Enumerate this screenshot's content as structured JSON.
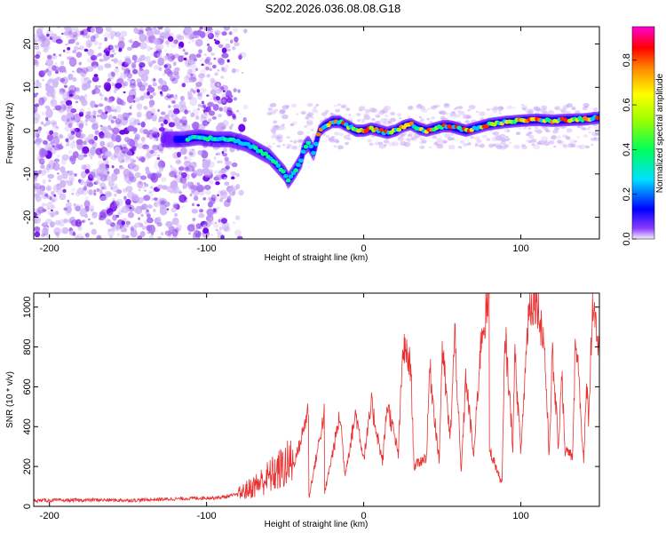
{
  "title": "S202.2026.036.08.08.G18",
  "chart_data": [
    {
      "type": "heatmap",
      "name": "spectrogram",
      "xlabel": "Height of straight line (km)",
      "ylabel": "Frequency (Hz)",
      "xlim": [
        -210,
        150
      ],
      "ylim": [
        -25,
        24
      ],
      "xticks": [
        -200,
        -100,
        0,
        100
      ],
      "yticks": [
        -20,
        -10,
        0,
        10,
        20
      ],
      "colorbar": {
        "label": "Normalized spectral amplitude",
        "range": [
          0,
          0.95
        ],
        "ticks": [
          0.0,
          0.2,
          0.4,
          0.6,
          0.8
        ]
      },
      "ridge": [
        [
          -125,
          -2
        ],
        [
          -115,
          -2
        ],
        [
          -105,
          -1.5
        ],
        [
          -95,
          -2
        ],
        [
          -85,
          -2
        ],
        [
          -75,
          -3
        ],
        [
          -70,
          -4
        ],
        [
          -65,
          -5
        ],
        [
          -60,
          -6
        ],
        [
          -55,
          -8
        ],
        [
          -50,
          -10
        ],
        [
          -48,
          -11.5
        ],
        [
          -45,
          -10
        ],
        [
          -40,
          -7
        ],
        [
          -38,
          -4
        ],
        [
          -35,
          -3
        ],
        [
          -32,
          -5
        ],
        [
          -28,
          0
        ],
        [
          -25,
          1
        ],
        [
          -20,
          2
        ],
        [
          -15,
          2
        ],
        [
          -10,
          1
        ],
        [
          -5,
          0
        ],
        [
          0,
          0
        ],
        [
          5,
          0.5
        ],
        [
          10,
          0
        ],
        [
          15,
          -0.5
        ],
        [
          20,
          0
        ],
        [
          25,
          1
        ],
        [
          30,
          1.5
        ],
        [
          35,
          0.5
        ],
        [
          40,
          0
        ],
        [
          45,
          0.5
        ],
        [
          50,
          1
        ],
        [
          55,
          1
        ],
        [
          60,
          0.5
        ],
        [
          65,
          0
        ],
        [
          70,
          0.5
        ],
        [
          75,
          1
        ],
        [
          80,
          1.5
        ],
        [
          90,
          2
        ],
        [
          100,
          2.3
        ],
        [
          110,
          2.5
        ],
        [
          120,
          2.3
        ],
        [
          130,
          2.5
        ],
        [
          140,
          2.6
        ],
        [
          150,
          3
        ]
      ]
    },
    {
      "type": "line",
      "name": "snr",
      "xlabel": "Height of straight line (km)",
      "ylabel": "SNR (10 * v/v)",
      "xlim": [
        -210,
        150
      ],
      "ylim": [
        0,
        1070
      ],
      "xticks": [
        -200,
        -100,
        0,
        100
      ],
      "yticks": [
        0,
        200,
        400,
        600,
        800,
        1000
      ],
      "color": "#e83030",
      "envelope": [
        [
          -210,
          30
        ],
        [
          -190,
          30
        ],
        [
          -170,
          32
        ],
        [
          -150,
          30
        ],
        [
          -130,
          35
        ],
        [
          -110,
          40
        ],
        [
          -90,
          45
        ],
        [
          -80,
          60
        ],
        [
          -70,
          100
        ],
        [
          -60,
          150
        ],
        [
          -50,
          200
        ],
        [
          -40,
          260
        ],
        [
          -30,
          310
        ],
        [
          -20,
          330
        ],
        [
          -10,
          380
        ],
        [
          0,
          400
        ],
        [
          10,
          420
        ],
        [
          20,
          480
        ],
        [
          30,
          600
        ],
        [
          40,
          650
        ],
        [
          50,
          600
        ],
        [
          60,
          700
        ],
        [
          70,
          700
        ],
        [
          80,
          760
        ],
        [
          90,
          620
        ],
        [
          100,
          730
        ],
        [
          110,
          760
        ],
        [
          120,
          620
        ],
        [
          130,
          660
        ],
        [
          140,
          640
        ],
        [
          150,
          740
        ]
      ],
      "peaks": [
        [
          -45,
          200
        ],
        [
          -40,
          330
        ],
        [
          -35,
          500
        ],
        [
          -25,
          470
        ],
        [
          -15,
          460
        ],
        [
          -5,
          470
        ],
        [
          5,
          510
        ],
        [
          15,
          520
        ],
        [
          25,
          800
        ],
        [
          30,
          700
        ],
        [
          42,
          700
        ],
        [
          50,
          800
        ],
        [
          58,
          870
        ],
        [
          65,
          650
        ],
        [
          75,
          870
        ],
        [
          80,
          1040
        ],
        [
          90,
          870
        ],
        [
          96,
          780
        ],
        [
          105,
          1000
        ],
        [
          110,
          1050
        ],
        [
          115,
          810
        ],
        [
          120,
          760
        ],
        [
          126,
          700
        ],
        [
          135,
          900
        ],
        [
          142,
          620
        ],
        [
          146,
          1070
        ],
        [
          150,
          740
        ]
      ],
      "troughs": [
        [
          -35,
          40
        ],
        [
          -25,
          60
        ],
        [
          -12,
          160
        ],
        [
          0,
          240
        ],
        [
          12,
          220
        ],
        [
          22,
          260
        ],
        [
          32,
          200
        ],
        [
          40,
          250
        ],
        [
          48,
          220
        ],
        [
          55,
          330
        ],
        [
          62,
          160
        ],
        [
          70,
          250
        ],
        [
          80,
          290
        ],
        [
          88,
          110
        ],
        [
          95,
          300
        ],
        [
          100,
          270
        ],
        [
          118,
          250
        ],
        [
          124,
          300
        ],
        [
          128,
          280
        ],
        [
          133,
          250
        ],
        [
          140,
          220
        ],
        [
          143,
          430
        ]
      ]
    }
  ]
}
